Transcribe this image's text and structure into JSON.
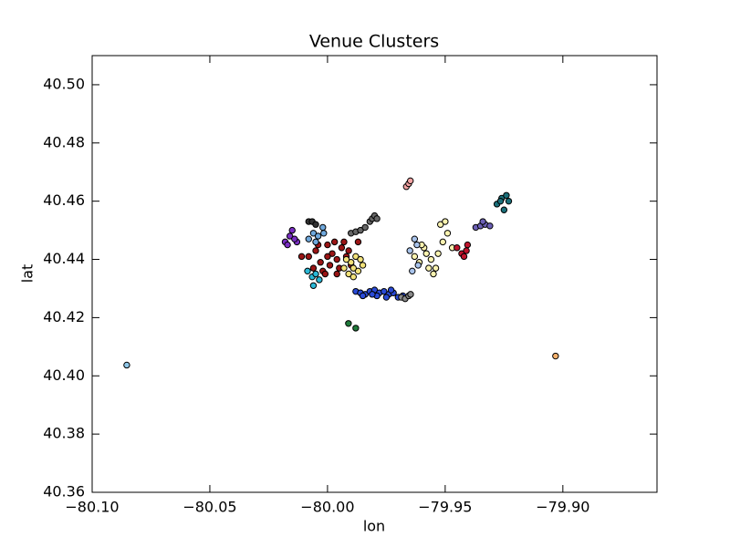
{
  "chart_data": {
    "type": "scatter",
    "title": "Venue Clusters",
    "x_label": "lon",
    "y_label": "lat",
    "xlim": [
      -80.1,
      -79.86
    ],
    "ylim": [
      40.36,
      40.51
    ],
    "xticks": [
      {
        "value": -80.1,
        "label": "−80.10"
      },
      {
        "value": -80.05,
        "label": "−80.05"
      },
      {
        "value": -80.0,
        "label": "−80.00"
      },
      {
        "value": -79.95,
        "label": "−79.95"
      },
      {
        "value": -79.9,
        "label": "−79.90"
      }
    ],
    "yticks": [
      40.36,
      40.38,
      {
        "value": 40.4,
        "label": "40.40"
      },
      40.42,
      40.44,
      40.46,
      40.48,
      {
        "value": 40.5,
        "label": "40.50"
      }
    ],
    "series": [
      {
        "color": "#8fc7e8",
        "x": [
          -80.0853
        ],
        "values": [
          40.4037
        ]
      },
      {
        "color": "#f5b06b",
        "x": [
          -79.9031
        ],
        "values": [
          40.4068
        ]
      },
      {
        "color": "#1f7a3a",
        "x": [
          -79.9911,
          -79.988
        ],
        "values": [
          40.418,
          40.4164
        ]
      },
      {
        "color": "#2a4bd7",
        "x": [
          -79.988,
          -79.986,
          -79.984,
          -79.982,
          -79.98,
          -79.978,
          -79.976,
          -79.974,
          -79.972,
          -79.97,
          -79.968,
          -79.985,
          -79.979,
          -79.973,
          -79.981,
          -79.975
        ],
        "values": [
          40.429,
          40.4285,
          40.428,
          40.429,
          40.4295,
          40.4285,
          40.429,
          40.428,
          40.4285,
          40.427,
          40.4275,
          40.4275,
          40.4275,
          40.4295,
          40.428,
          40.427
        ]
      },
      {
        "color": "#8a8a8a",
        "x": [
          -79.9686,
          -79.967,
          -79.9655,
          -79.9647
        ],
        "values": [
          40.427,
          40.4265,
          40.4275,
          40.428
        ]
      },
      {
        "color": "#9b1515",
        "x": [
          -80.008,
          -80.005,
          -80.003,
          -80.0,
          -79.998,
          -79.996,
          -79.994,
          -79.992,
          -79.99,
          -79.987,
          -80.006,
          -80.002,
          -79.999,
          -79.995,
          -79.991,
          -80.004,
          -80.0,
          -79.997,
          -79.993,
          -80.001,
          -79.996,
          -80.011
        ],
        "values": [
          40.441,
          40.443,
          40.439,
          40.445,
          40.442,
          40.44,
          40.444,
          40.441,
          40.438,
          40.446,
          40.437,
          40.436,
          40.438,
          40.437,
          40.443,
          40.445,
          40.441,
          40.446,
          40.446,
          40.435,
          40.435,
          40.441
        ]
      },
      {
        "color": "#f2e27a",
        "x": [
          -79.993,
          -79.991,
          -79.989,
          -79.987,
          -79.985,
          -79.99,
          -79.988,
          -79.986,
          -79.992,
          -79.989
        ],
        "values": [
          40.437,
          40.435,
          40.434,
          40.436,
          40.438,
          40.439,
          40.441,
          40.44,
          40.44,
          40.437
        ]
      },
      {
        "color": "#2ab8d6",
        "x": [
          -80.0085,
          -80.0065,
          -80.005,
          -80.0035,
          -80.006
        ],
        "values": [
          40.436,
          40.434,
          40.435,
          40.433,
          40.431
        ]
      },
      {
        "color": "#7a2fc4",
        "x": [
          -80.018,
          -80.016,
          -80.015,
          -80.013,
          -80.014,
          -80.017
        ],
        "values": [
          40.446,
          40.448,
          40.45,
          40.446,
          40.447,
          40.445
        ]
      },
      {
        "color": "#6fa8dc",
        "x": [
          -80.008,
          -80.006,
          -80.004,
          -80.002,
          -80.005,
          -80.0016
        ],
        "values": [
          40.447,
          40.449,
          40.448,
          40.451,
          40.446,
          40.449
        ]
      },
      {
        "color": "#333333",
        "x": [
          -80.008,
          -80.0065,
          -80.005
        ],
        "values": [
          40.453,
          40.453,
          40.452
        ]
      },
      {
        "color": "#666666",
        "x": [
          -79.99,
          -79.988,
          -79.986,
          -79.984,
          -79.982,
          -79.981,
          -79.98,
          -79.979
        ],
        "values": [
          40.449,
          40.4495,
          40.45,
          40.451,
          40.453,
          40.454,
          40.455,
          40.454
        ]
      },
      {
        "color": "#f4a4a4",
        "x": [
          -79.9665,
          -79.9655,
          -79.9648
        ],
        "values": [
          40.465,
          40.466,
          40.467
        ]
      },
      {
        "color": "#fbf3b0",
        "x": [
          -79.963,
          -79.961,
          -79.959,
          -79.957,
          -79.955,
          -79.953,
          -79.951,
          -79.949,
          -79.947,
          -79.952,
          -79.956,
          -79.96,
          -79.95,
          -79.954,
          -79.958
        ],
        "values": [
          40.441,
          40.439,
          40.444,
          40.437,
          40.435,
          40.442,
          40.446,
          40.449,
          40.444,
          40.452,
          40.44,
          40.445,
          40.453,
          40.437,
          40.442
        ]
      },
      {
        "color": "#a9c4ec",
        "x": [
          -79.965,
          -79.963,
          -79.962,
          -79.964,
          -79.9615
        ],
        "values": [
          40.443,
          40.447,
          40.445,
          40.436,
          40.438
        ]
      },
      {
        "color": "#c0142c",
        "x": [
          -79.945,
          -79.943,
          -79.941,
          -79.9405,
          -79.942
        ],
        "values": [
          40.444,
          40.442,
          40.443,
          40.445,
          40.441
        ]
      },
      {
        "color": "#6b5fb5",
        "x": [
          -79.937,
          -79.935,
          -79.933,
          -79.931,
          -79.934
        ],
        "values": [
          40.451,
          40.4515,
          40.452,
          40.4515,
          40.453
        ]
      },
      {
        "color": "#1a6f7a",
        "x": [
          -79.928,
          -79.926,
          -79.925,
          -79.924,
          -79.923,
          -79.9265
        ],
        "values": [
          40.459,
          40.461,
          40.457,
          40.462,
          40.46,
          40.46
        ]
      }
    ]
  }
}
